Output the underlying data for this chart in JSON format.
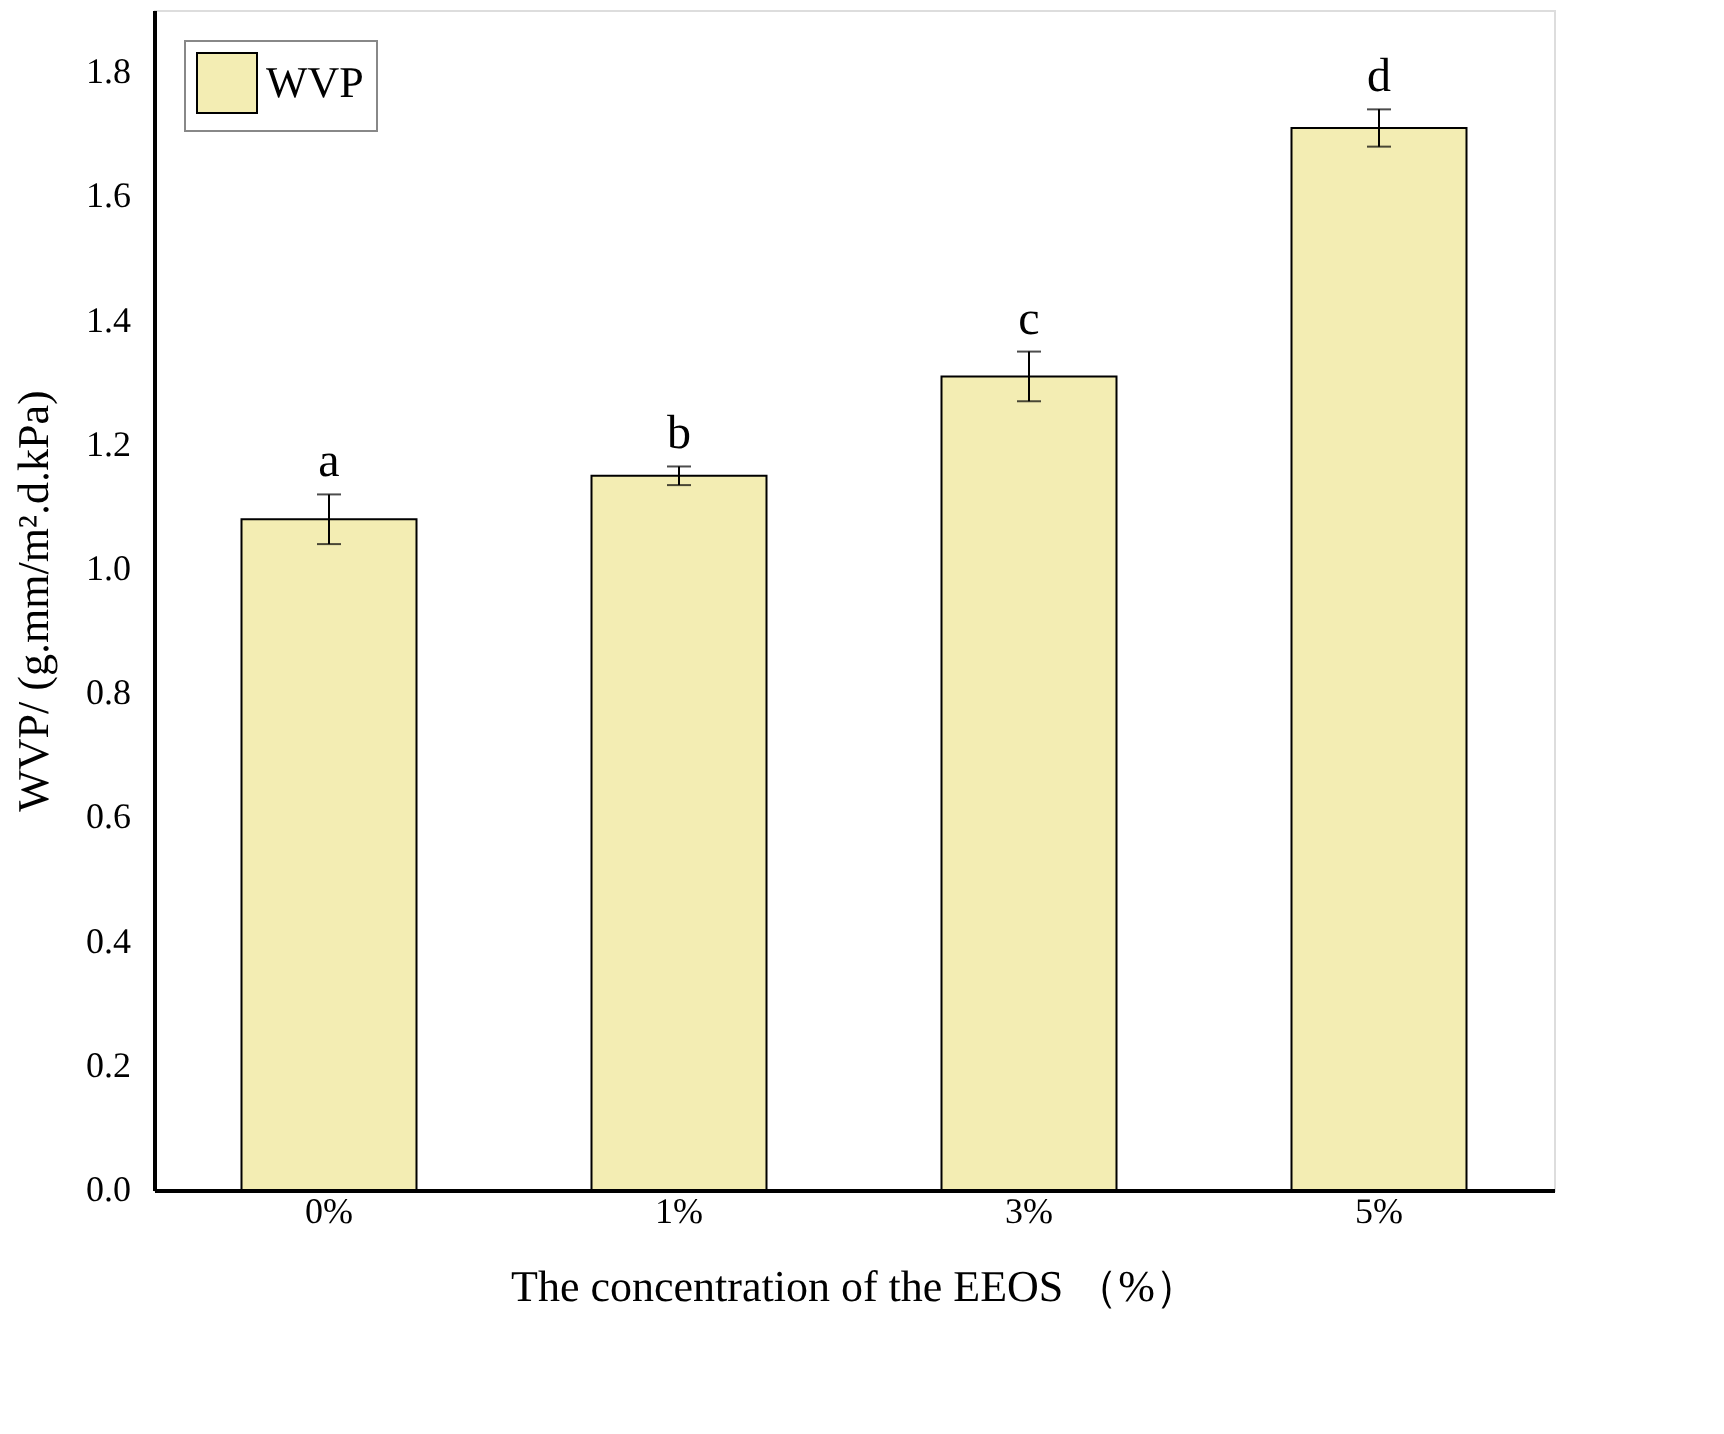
{
  "chart_data": {
    "type": "bar",
    "xlabel": "The concentration of the EEOS （%）",
    "ylabel": "WVP/ (g.mm/m².d.kPa)",
    "categories": [
      "0%",
      "1%",
      "3%",
      "5%"
    ],
    "series": [
      {
        "name": "WVP",
        "color": "#f3edb3",
        "values": [
          1.08,
          1.15,
          1.31,
          1.71
        ],
        "errors": [
          0.04,
          0.015,
          0.04,
          0.03
        ]
      }
    ],
    "ylim": [
      0,
      1.9
    ],
    "yticks": [
      {
        "value": 0,
        "label": "0.0"
      },
      {
        "value": 0.2,
        "label": "0.2"
      },
      {
        "value": 0.4,
        "label": "0.4"
      },
      {
        "value": 0.6,
        "label": "0.6"
      },
      {
        "value": 0.8,
        "label": "0.8"
      },
      {
        "value": 1.0,
        "label": "1.0"
      },
      {
        "value": 1.2,
        "label": "1.2"
      },
      {
        "value": 1.4,
        "label": "1.4"
      },
      {
        "value": 1.6,
        "label": "1.6"
      },
      {
        "value": 1.8,
        "label": "1.8"
      }
    ],
    "annotations": [
      {
        "text": "a",
        "x": "0%",
        "y": 1.12
      },
      {
        "text": "b",
        "x": "1%",
        "y": 1.165
      },
      {
        "text": "c",
        "x": "3%",
        "y": 1.35
      },
      {
        "text": "d",
        "x": "5%",
        "y": 1.74
      }
    ],
    "grid": false,
    "legend": "top left"
  }
}
